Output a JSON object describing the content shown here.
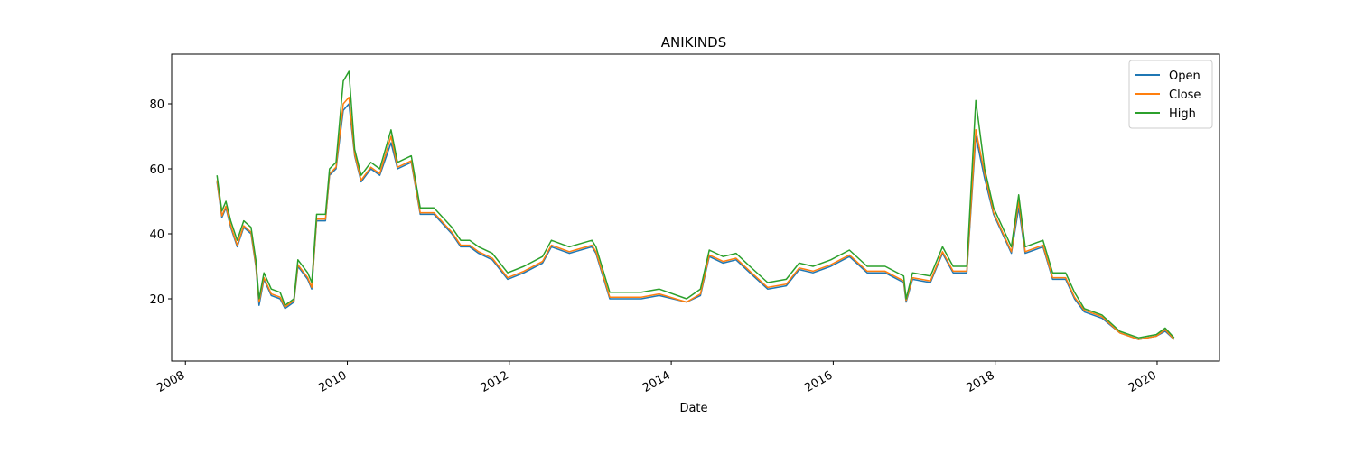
{
  "chart_data": {
    "type": "line",
    "title": "ANIKINDS",
    "x_label": "Date",
    "x": [
      2008.39,
      2008.45,
      2008.5,
      2008.56,
      2008.64,
      2008.72,
      2008.81,
      2008.87,
      2008.91,
      2008.97,
      2009.06,
      2009.17,
      2009.23,
      2009.34,
      2009.39,
      2009.51,
      2009.56,
      2009.62,
      2009.73,
      2009.78,
      2009.86,
      2009.95,
      2010.02,
      2010.09,
      2010.17,
      2010.29,
      2010.4,
      2010.54,
      2010.62,
      2010.79,
      2010.9,
      2011.07,
      2011.29,
      2011.4,
      2011.51,
      2011.62,
      2011.79,
      2011.98,
      2012.18,
      2012.41,
      2012.52,
      2012.74,
      2013.02,
      2013.07,
      2013.24,
      2013.41,
      2013.63,
      2013.85,
      2014.19,
      2014.36,
      2014.47,
      2014.64,
      2014.8,
      2014.97,
      2015.19,
      2015.42,
      2015.58,
      2015.75,
      2015.97,
      2016.2,
      2016.42,
      2016.64,
      2016.87,
      2016.9,
      2016.98,
      2017.2,
      2017.35,
      2017.48,
      2017.65,
      2017.76,
      2017.87,
      2017.98,
      2018.09,
      2018.2,
      2018.29,
      2018.37,
      2018.59,
      2018.71,
      2018.87,
      2018.98,
      2019.1,
      2019.32,
      2019.54,
      2019.77,
      2019.99,
      2020.1,
      2020.21
    ],
    "series": [
      {
        "name": "Open",
        "color": "#1f77b4",
        "values": [
          56,
          45,
          48,
          42,
          36,
          42,
          40,
          30,
          18,
          26,
          21,
          20,
          17,
          19,
          30,
          26,
          23,
          44,
          44,
          58,
          60,
          78,
          80,
          64,
          56,
          60,
          58,
          68,
          60,
          62,
          46,
          46,
          40,
          36,
          36,
          34,
          32,
          26,
          28,
          31,
          36,
          34,
          36,
          34,
          20,
          20,
          20,
          21,
          19,
          21,
          33,
          31,
          32,
          28,
          23,
          24,
          29,
          28,
          30,
          33,
          28,
          28,
          25,
          19,
          26,
          25,
          34,
          28,
          28,
          70,
          57,
          46,
          40,
          34,
          48,
          34,
          36,
          26,
          26,
          20,
          16,
          14,
          9.5,
          7.5,
          8.5,
          10,
          7.5
        ]
      },
      {
        "name": "Close",
        "color": "#ff7f0e",
        "values": [
          56.5,
          45.5,
          48.5,
          42.5,
          36.5,
          42.5,
          40.5,
          30.5,
          19,
          26.5,
          21.5,
          20.5,
          17.5,
          19.5,
          30.5,
          26.5,
          23.5,
          44.5,
          44.5,
          58.5,
          60.5,
          80,
          82,
          64.5,
          56.5,
          60.5,
          58.5,
          70,
          60.5,
          62.5,
          46.5,
          46.5,
          40.5,
          36.5,
          36.5,
          34.5,
          32.5,
          26.5,
          28.5,
          31.5,
          36.5,
          34.5,
          36.5,
          34.5,
          20.5,
          20.5,
          20.5,
          21.5,
          19,
          21.5,
          33.5,
          31.5,
          32.5,
          28.5,
          23.5,
          24.5,
          29.5,
          28.5,
          30.5,
          33.5,
          28.5,
          28.5,
          25.5,
          19.5,
          26.5,
          25.5,
          34.5,
          28.5,
          28.5,
          72,
          58.5,
          46.5,
          40.5,
          34.5,
          50,
          34.5,
          36.5,
          26.5,
          26.5,
          20.5,
          16.5,
          14.5,
          9.5,
          7.5,
          8.5,
          10.5,
          7.5
        ]
      },
      {
        "name": "High",
        "color": "#2ca02c",
        "values": [
          58,
          47,
          50,
          44,
          38,
          44,
          42,
          32,
          20,
          28,
          23,
          22,
          18,
          20,
          32,
          28,
          25,
          46,
          46,
          60,
          62,
          87,
          90,
          66,
          58,
          62,
          60,
          72,
          62,
          64,
          48,
          48,
          42,
          38,
          38,
          36,
          34,
          28,
          30,
          33,
          38,
          36,
          38,
          36,
          22,
          22,
          22,
          23,
          20,
          23,
          35,
          33,
          34,
          30,
          25,
          26,
          31,
          30,
          32,
          35,
          30,
          30,
          27,
          20,
          28,
          27,
          36,
          30,
          30,
          81,
          60,
          48,
          42,
          36,
          52,
          36,
          38,
          28,
          28,
          22,
          17,
          15,
          10,
          8,
          9,
          11,
          8
        ]
      }
    ],
    "xlim": [
      2007.83,
      2020.77
    ],
    "xticks": [
      2008,
      2010,
      2012,
      2014,
      2016,
      2018,
      2020
    ],
    "ylim": [
      0.83,
      95.28
    ],
    "yticks": [
      20,
      40,
      60,
      80
    ],
    "legend": "upper right"
  }
}
